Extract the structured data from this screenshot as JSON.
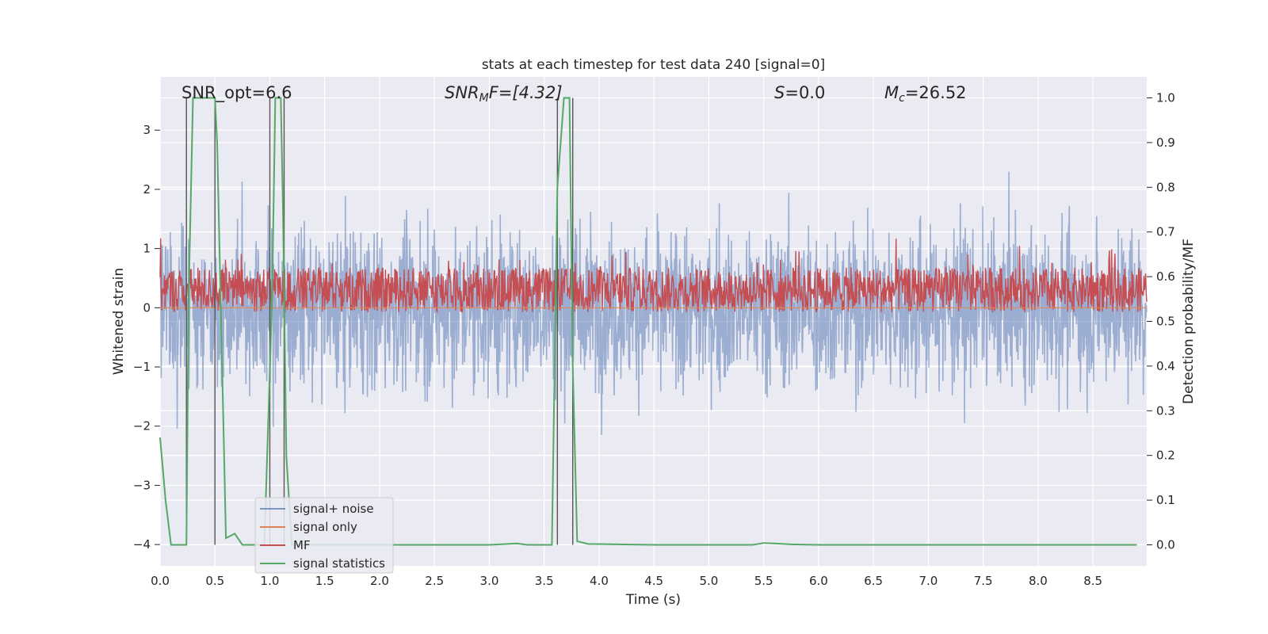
{
  "chart_data": {
    "type": "line",
    "title": "stats at each timestep for test data 240 [signal=0]",
    "xlabel": "Time (s)",
    "ylabel": "Whitened strain",
    "y2label": "Detection probability/MF",
    "xlim": [
      0.0,
      8.99
    ],
    "ylim": [
      -4.36,
      3.9
    ],
    "y2lim": [
      -0.047,
      1.047
    ],
    "x_ticks": [
      "0.0",
      "0.5",
      "1.0",
      "1.5",
      "2.0",
      "2.5",
      "3.0",
      "3.5",
      "4.0",
      "4.5",
      "5.0",
      "5.5",
      "6.0",
      "6.5",
      "7.0",
      "7.5",
      "8.0",
      "8.5"
    ],
    "y_ticks": [
      "3",
      "2",
      "1",
      "0",
      "−1",
      "−2",
      "−3",
      "−4"
    ],
    "y2_ticks": [
      "1.0",
      "0.9",
      "0.8",
      "0.7",
      "0.6",
      "0.5",
      "0.4",
      "0.3",
      "0.2",
      "0.1",
      "0.0"
    ],
    "grid": true,
    "legend_position": "lower-left",
    "annotations": {
      "snr_opt": "SNR_opt=6.6",
      "snr_mf_label": "SNR",
      "snr_mf_sub": "M",
      "snr_mf_after": "F=[4.32]",
      "s_label": "S",
      "s_value": "=0.0",
      "mc_label": "M",
      "mc_sub": "c",
      "mc_value": "=26.52"
    },
    "series": [
      {
        "name": "signal+ noise",
        "color": "#4c72b0",
        "noise_amplitude": 1.0,
        "peak_range": [
          -3.7,
          3.55
        ]
      },
      {
        "name": "signal only",
        "color": "#dd8452",
        "values_constant": 0.0
      },
      {
        "name": "MF",
        "color": "#c44e52",
        "y2_band": [
          0.52,
          0.62
        ]
      },
      {
        "name": "signal statistics",
        "color": "#55a868",
        "x": [
          0.0,
          0.05,
          0.1,
          0.2,
          0.24,
          0.26,
          0.3,
          0.5,
          0.52,
          0.6,
          0.68,
          0.75,
          0.95,
          1.02,
          1.05,
          1.1,
          1.12,
          1.15,
          1.2,
          1.5,
          2.0,
          2.5,
          3.0,
          3.25,
          3.35,
          3.5,
          3.57,
          3.62,
          3.68,
          3.73,
          3.76,
          3.8,
          3.9,
          4.5,
          5.0,
          5.4,
          5.5,
          5.6,
          5.75,
          6.0,
          7.0,
          8.0,
          8.9
        ],
        "y": [
          0.24,
          0.1,
          0.0,
          0.0,
          0.0,
          0.55,
          1.0,
          1.0,
          0.9,
          0.015,
          0.025,
          0.0,
          0.0,
          0.55,
          1.0,
          1.0,
          0.75,
          0.2,
          0.0,
          0.0,
          0.0,
          0.0,
          0.0,
          0.003,
          0.0,
          0.0,
          0.0,
          0.8,
          1.0,
          1.0,
          0.4,
          0.008,
          0.002,
          0.0,
          0.0,
          0.0,
          0.004,
          0.003,
          0.001,
          0.0,
          0.0,
          0.0,
          0.0
        ]
      }
    ],
    "vertical_markers": [
      0.24,
      0.5,
      1.0,
      1.13,
      3.62,
      3.76
    ],
    "marker_color": "#555555"
  }
}
